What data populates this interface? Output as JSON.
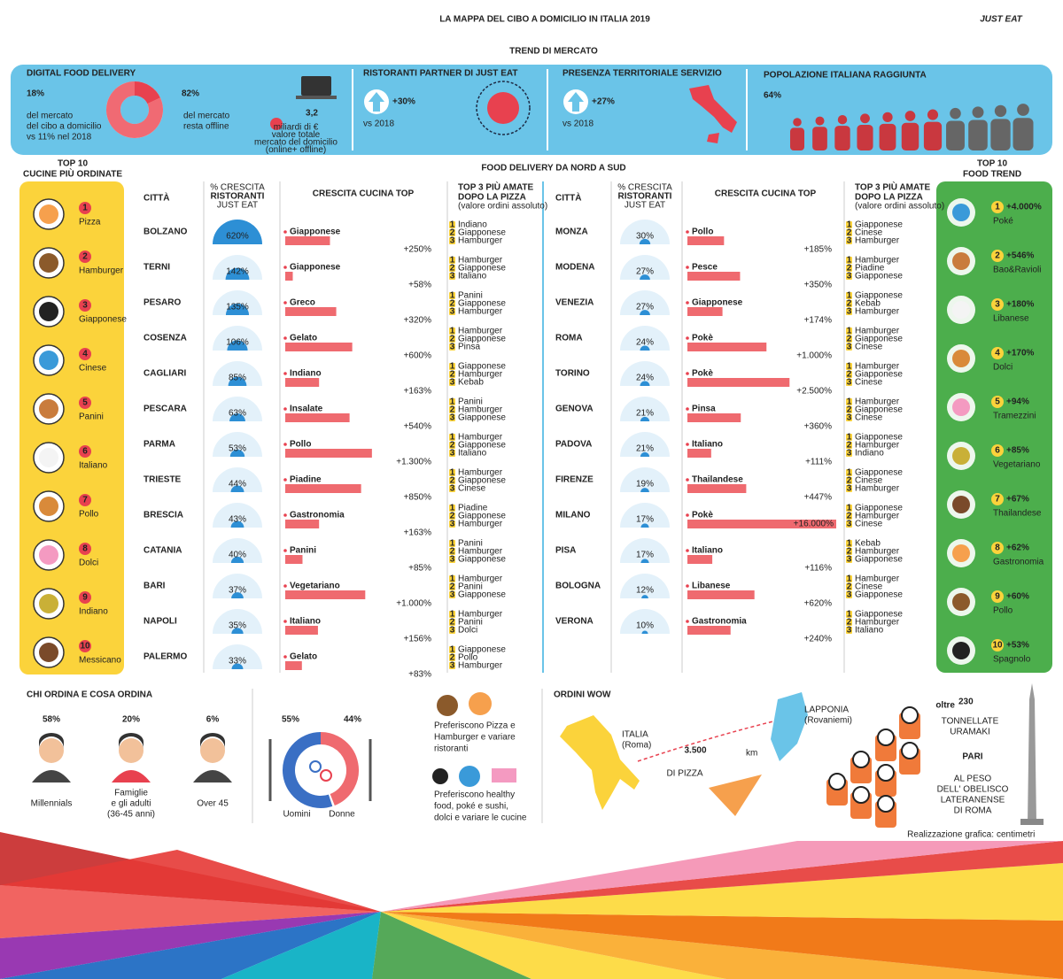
{
  "header": {
    "title": "LA MAPPA DEL CIBO A DOMICILIO IN ITALIA 2019",
    "logo": "JUST EAT"
  },
  "trend": {
    "title": "TREND DI MERCATO",
    "digital": {
      "heading": "DIGITAL FOOD DELIVERY",
      "share": {
        "value": 18,
        "label": "18%"
      },
      "share_text": [
        "del mercato",
        "del cibo a domicilio",
        "vs 11% nel 2018"
      ],
      "offline": {
        "value": 82,
        "label": "82%"
      },
      "offline_text": [
        "del mercato",
        "resta offline"
      ],
      "value": "3,2",
      "value_text": [
        "miliardi di €",
        "valore totale",
        "mercato del domicilio",
        "(online+ offline)"
      ]
    },
    "partners": {
      "heading": "RISTORANTI PARTNER DI JUST EAT",
      "growth": "+30%",
      "note": "vs 2018"
    },
    "presence": {
      "heading": "PRESENZA TERRITORIALE SERVIZIO",
      "growth": "+27%",
      "note": "vs 2018"
    },
    "population": {
      "heading": "POPOLAZIONE ITALIANA RAGGIUNTA",
      "share": {
        "value": 64,
        "label": "64%"
      }
    }
  },
  "top10": {
    "title": [
      "TOP 10",
      "CUCINE PIÙ ORDINATE"
    ],
    "items": [
      {
        "rank": 1,
        "name": "Pizza"
      },
      {
        "rank": 2,
        "name": "Hamburger"
      },
      {
        "rank": 3,
        "name": "Giapponese"
      },
      {
        "rank": 4,
        "name": "Cinese"
      },
      {
        "rank": 5,
        "name": "Panini"
      },
      {
        "rank": 6,
        "name": "Italiano"
      },
      {
        "rank": 7,
        "name": "Pollo"
      },
      {
        "rank": 8,
        "name": "Dolci"
      },
      {
        "rank": 9,
        "name": "Indiano"
      },
      {
        "rank": 10,
        "name": "Messicano"
      }
    ]
  },
  "trends": {
    "title": [
      "TOP 10",
      "FOOD TREND"
    ],
    "items": [
      {
        "rank": 1,
        "growth": "+4.000%",
        "name": "Poké"
      },
      {
        "rank": 2,
        "growth": "+546%",
        "name": "Bao&Ravioli"
      },
      {
        "rank": 3,
        "growth": "+180%",
        "name": "Libanese"
      },
      {
        "rank": 4,
        "growth": "+170%",
        "name": "Dolci"
      },
      {
        "rank": 5,
        "growth": "+94%",
        "name": "Tramezzini"
      },
      {
        "rank": 6,
        "growth": "+85%",
        "name": "Vegetariano"
      },
      {
        "rank": 7,
        "growth": "+67%",
        "name": "Thailandese"
      },
      {
        "rank": 8,
        "growth": "+62%",
        "name": "Gastronomia"
      },
      {
        "rank": 9,
        "growth": "+60%",
        "name": "Pollo"
      },
      {
        "rank": 10,
        "growth": "+53%",
        "name": "Spagnolo"
      }
    ]
  },
  "nordsud": {
    "title": "FOOD DELIVERY DA NORD A SUD",
    "headers": {
      "city": "CITTÀ",
      "growth": [
        "% CRESCITA",
        "RISTORANTI",
        "JUST EAT"
      ],
      "cuisine": "CRESCITA CUCINA TOP",
      "top3": [
        "TOP 3 PIÙ AMATE",
        "DOPO LA PIZZA",
        "(valore ordini assoluto)"
      ]
    },
    "ranks": [
      1,
      2,
      3
    ],
    "tables": [
      [
        {
          "city": "BOLZANO",
          "share": {
            "value": 620,
            "label": "620%"
          },
          "cuisine": "Giapponese",
          "growth": {
            "value": 250,
            "label": "+250%"
          },
          "top3": [
            "Indiano",
            "Giapponese",
            "Hamburger"
          ]
        },
        {
          "city": "TERNI",
          "share": {
            "value": 142,
            "label": "142%"
          },
          "cuisine": "Giapponese",
          "growth": {
            "value": 58,
            "label": "+58%"
          },
          "top3": [
            "Hamburger",
            "Giapponese",
            "Italiano"
          ]
        },
        {
          "city": "PESARO",
          "share": {
            "value": 135,
            "label": "135%"
          },
          "cuisine": "Greco",
          "growth": {
            "value": 320,
            "label": "+320%"
          },
          "top3": [
            "Panini",
            "Giapponese",
            "Hamburger"
          ]
        },
        {
          "city": "COSENZA",
          "share": {
            "value": 106,
            "label": "106%"
          },
          "cuisine": "Gelato",
          "growth": {
            "value": 600,
            "label": "+600%"
          },
          "top3": [
            "Hamburger",
            "Giapponese",
            "Pinsa"
          ]
        },
        {
          "city": "CAGLIARI",
          "share": {
            "value": 85,
            "label": "85%"
          },
          "cuisine": "Indiano",
          "growth": {
            "value": 163,
            "label": "+163%"
          },
          "top3": [
            "Giapponese",
            "Hamburger",
            "Kebab"
          ]
        },
        {
          "city": "PESCARA",
          "share": {
            "value": 63,
            "label": "63%"
          },
          "cuisine": "Insalate",
          "growth": {
            "value": 540,
            "label": "+540%"
          },
          "top3": [
            "Panini",
            "Hamburger",
            "Giapponese"
          ]
        },
        {
          "city": "PARMA",
          "share": {
            "value": 53,
            "label": "53%"
          },
          "cuisine": "Pollo",
          "growth": {
            "value": 1300,
            "label": "+1.300%"
          },
          "top3": [
            "Hamburger",
            "Giapponese",
            "Italiano"
          ]
        },
        {
          "city": "TRIESTE",
          "share": {
            "value": 44,
            "label": "44%"
          },
          "cuisine": "Piadine",
          "growth": {
            "value": 850,
            "label": "+850%"
          },
          "top3": [
            "Hamburger",
            "Giapponese",
            "Cinese"
          ]
        },
        {
          "city": "BRESCIA",
          "share": {
            "value": 43,
            "label": "43%"
          },
          "cuisine": "Gastronomia",
          "growth": {
            "value": 163,
            "label": "+163%"
          },
          "top3": [
            "Piadine",
            "Giapponese",
            "Hamburger"
          ]
        },
        {
          "city": "CATANIA",
          "share": {
            "value": 40,
            "label": "40%"
          },
          "cuisine": "Panini",
          "growth": {
            "value": 85,
            "label": "+85%"
          },
          "top3": [
            "Panini",
            "Hamburger",
            "Giapponese"
          ]
        },
        {
          "city": "BARI",
          "share": {
            "value": 37,
            "label": "37%"
          },
          "cuisine": "Vegetariano",
          "growth": {
            "value": 1000,
            "label": "+1.000%"
          },
          "top3": [
            "Hamburger",
            "Panini",
            "Giapponese"
          ]
        },
        {
          "city": "NAPOLI",
          "share": {
            "value": 35,
            "label": "35%"
          },
          "cuisine": "Italiano",
          "growth": {
            "value": 156,
            "label": "+156%"
          },
          "top3": [
            "Hamburger",
            "Panini",
            "Dolci"
          ]
        },
        {
          "city": "PALERMO",
          "share": {
            "value": 33,
            "label": "33%"
          },
          "cuisine": "Gelato",
          "growth": {
            "value": 83,
            "label": "+83%"
          },
          "top3": [
            "Giapponese",
            "Pollo",
            "Hamburger"
          ]
        }
      ],
      [
        {
          "city": "MONZA",
          "share": {
            "value": 30,
            "label": "30%"
          },
          "cuisine": "Pollo",
          "growth": {
            "value": 185,
            "label": "+185%"
          },
          "top3": [
            "Giapponese",
            "Cinese",
            "Hamburger"
          ]
        },
        {
          "city": "MODENA",
          "share": {
            "value": 27,
            "label": "27%"
          },
          "cuisine": "Pesce",
          "growth": {
            "value": 350,
            "label": "+350%"
          },
          "top3": [
            "Hamburger",
            "Piadine",
            "Giapponese"
          ]
        },
        {
          "city": "VENEZIA",
          "share": {
            "value": 27,
            "label": "27%"
          },
          "cuisine": "Giapponese",
          "growth": {
            "value": 174,
            "label": "+174%"
          },
          "top3": [
            "Giapponese",
            "Kebab",
            "Hamburger"
          ]
        },
        {
          "city": "ROMA",
          "share": {
            "value": 24,
            "label": "24%"
          },
          "cuisine": "Pokè",
          "growth": {
            "value": 1000,
            "label": "+1.000%"
          },
          "top3": [
            "Hamburger",
            "Giapponese",
            "Cinese"
          ]
        },
        {
          "city": "TORINO",
          "share": {
            "value": 24,
            "label": "24%"
          },
          "cuisine": "Pokè",
          "growth": {
            "value": 2500,
            "label": "+2.500%"
          },
          "top3": [
            "Hamburger",
            "Giapponese",
            "Cinese"
          ]
        },
        {
          "city": "GENOVA",
          "share": {
            "value": 21,
            "label": "21%"
          },
          "cuisine": "Pinsa",
          "growth": {
            "value": 360,
            "label": "+360%"
          },
          "top3": [
            "Hamburger",
            "Giapponese",
            "Cinese"
          ]
        },
        {
          "city": "PADOVA",
          "share": {
            "value": 21,
            "label": "21%"
          },
          "cuisine": "Italiano",
          "growth": {
            "value": 111,
            "label": "+111%"
          },
          "top3": [
            "Giapponese",
            "Hamburger",
            "Indiano"
          ]
        },
        {
          "city": "FIRENZE",
          "share": {
            "value": 19,
            "label": "19%"
          },
          "cuisine": "Thailandese",
          "growth": {
            "value": 447,
            "label": "+447%"
          },
          "top3": [
            "Giapponese",
            "Cinese",
            "Hamburger"
          ]
        },
        {
          "city": "MILANO",
          "share": {
            "value": 17,
            "label": "17%"
          },
          "cuisine": "Pokè",
          "growth": {
            "value": 16000,
            "label": "+16.000%"
          },
          "top3": [
            "Giapponese",
            "Hamburger",
            "Cinese"
          ]
        },
        {
          "city": "PISA",
          "share": {
            "value": 17,
            "label": "17%"
          },
          "cuisine": "Italiano",
          "growth": {
            "value": 116,
            "label": "+116%"
          },
          "top3": [
            "Kebab",
            "Hamburger",
            "Giapponese"
          ]
        },
        {
          "city": "BOLOGNA",
          "share": {
            "value": 12,
            "label": "12%"
          },
          "cuisine": "Libanese",
          "growth": {
            "value": 620,
            "label": "+620%"
          },
          "top3": [
            "Hamburger",
            "Cinese",
            "Giapponese"
          ]
        },
        {
          "city": "VERONA",
          "share": {
            "value": 10,
            "label": "10%"
          },
          "cuisine": "Gastronomia",
          "growth": {
            "value": 240,
            "label": "+240%"
          },
          "top3": [
            "Giapponese",
            "Hamburger",
            "Italiano"
          ]
        }
      ]
    ]
  },
  "chi": {
    "title": "CHI ORDINA E COSA ORDINA",
    "groups": [
      {
        "share": "58%",
        "label": [
          "Millennials"
        ]
      },
      {
        "share": "20%",
        "label": [
          "Famiglie",
          "e gli adulti",
          "(36-45 anni)"
        ]
      },
      {
        "share": "6%",
        "label": [
          "Over 45"
        ]
      }
    ]
  },
  "gender": {
    "men": {
      "share": {
        "value": 55,
        "label": "55%"
      },
      "name": "Uomini"
    },
    "women": {
      "share": {
        "value": 44,
        "label": "44%"
      },
      "name": "Donne"
    }
  },
  "prefs": [
    [
      "Preferiscono Pizza e",
      "Hamburger e variare",
      "ristoranti"
    ],
    [
      "Preferiscono healthy",
      "food, poké e sushi,",
      "dolci e variare le cucine"
    ]
  ],
  "wow": {
    "title": "ORDINI WOW",
    "italy": [
      "ITALIA",
      "(Roma)"
    ],
    "lapponia": [
      "LAPPONIA",
      "(Rovaniemi)"
    ],
    "distance": "3.500",
    "unit": "km",
    "distance_text": "DI PIZZA",
    "oltre": "oltre",
    "amount": "230",
    "amount_lines": [
      "TONNELLATE",
      "URAMAKI"
    ],
    "pari": "PARI",
    "rest": [
      "AL PESO",
      "DELL' OBELISCO",
      "LATERANENSE",
      "DI ROMA"
    ]
  },
  "credit": [
    "Realizzazione grafica:",
    "centimetri"
  ]
}
